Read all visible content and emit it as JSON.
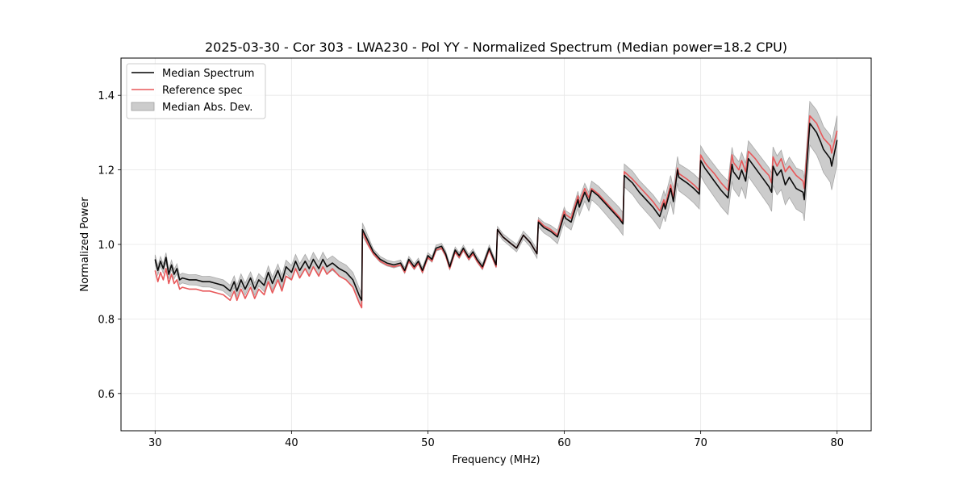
{
  "chart_data": {
    "type": "line",
    "title": "2025-03-30 - Cor 303 - LWA230 - Pol YY - Normalized Spectrum (Median power=18.2 CPU)",
    "xlabel": "Frequency (MHz)",
    "ylabel": "Normalized Power",
    "xlim": [
      27.5,
      82.5
    ],
    "ylim": [
      0.5,
      1.5
    ],
    "xticks": [
      30,
      40,
      50,
      60,
      70,
      80
    ],
    "xtick_labels": [
      "30",
      "40",
      "50",
      "60",
      "70",
      "80"
    ],
    "yticks": [
      0.6,
      0.8,
      1.0,
      1.2,
      1.4
    ],
    "ytick_labels": [
      "0.6",
      "0.8",
      "1.0",
      "1.2",
      "1.4"
    ],
    "grid": true,
    "legend_position": "top-left",
    "legend": [
      {
        "label": "Median Spectrum",
        "kind": "line",
        "color": "#000000"
      },
      {
        "label": "Reference spec",
        "kind": "line",
        "color": "#e8585a"
      },
      {
        "label": "Median Abs. Dev.",
        "kind": "band",
        "color": "#bfbfbf"
      }
    ],
    "x": [
      30.0,
      30.2,
      30.4,
      30.6,
      30.8,
      31.0,
      31.2,
      31.4,
      31.6,
      31.8,
      32.0,
      32.5,
      33.0,
      33.5,
      34.0,
      34.5,
      35.0,
      35.5,
      35.8,
      36.0,
      36.3,
      36.6,
      37.0,
      37.3,
      37.6,
      38.0,
      38.3,
      38.6,
      39.0,
      39.3,
      39.6,
      40.0,
      40.3,
      40.6,
      41.0,
      41.3,
      41.6,
      42.0,
      42.3,
      42.6,
      43.0,
      43.5,
      44.0,
      44.5,
      45.0,
      45.15,
      45.2,
      45.6,
      46.0,
      46.5,
      47.0,
      47.5,
      48.0,
      48.3,
      48.6,
      49.0,
      49.3,
      49.6,
      50.0,
      50.3,
      50.6,
      51.0,
      51.3,
      51.6,
      52.0,
      52.3,
      52.6,
      53.0,
      53.3,
      53.6,
      54.0,
      54.5,
      55.0,
      55.1,
      55.5,
      56.0,
      56.5,
      57.0,
      57.5,
      58.0,
      58.1,
      58.5,
      59.0,
      59.5,
      60.0,
      60.1,
      60.5,
      61.0,
      61.1,
      61.5,
      61.8,
      62.0,
      62.5,
      63.0,
      63.5,
      64.0,
      64.3,
      64.4,
      65.0,
      65.5,
      66.0,
      66.5,
      67.0,
      67.3,
      67.4,
      67.8,
      68.0,
      68.3,
      68.4,
      69.0,
      69.5,
      69.9,
      70.0,
      70.3,
      70.5,
      71.0,
      71.5,
      72.0,
      72.3,
      72.4,
      72.8,
      73.0,
      73.3,
      73.5,
      74.0,
      74.5,
      75.0,
      75.2,
      75.3,
      75.6,
      75.9,
      76.2,
      76.5,
      77.0,
      77.5,
      77.6,
      78.0,
      78.5,
      78.8,
      79.0,
      79.5,
      79.6,
      80.0
    ],
    "series": [
      {
        "name": "Median Spectrum",
        "color": "#000000",
        "values": [
          0.96,
          0.93,
          0.955,
          0.935,
          0.965,
          0.92,
          0.945,
          0.92,
          0.935,
          0.905,
          0.91,
          0.905,
          0.905,
          0.9,
          0.9,
          0.895,
          0.89,
          0.875,
          0.9,
          0.875,
          0.905,
          0.88,
          0.91,
          0.88,
          0.905,
          0.89,
          0.925,
          0.895,
          0.93,
          0.9,
          0.94,
          0.925,
          0.955,
          0.93,
          0.955,
          0.935,
          0.96,
          0.935,
          0.96,
          0.94,
          0.95,
          0.935,
          0.925,
          0.905,
          0.86,
          0.85,
          1.04,
          1.01,
          0.98,
          0.96,
          0.95,
          0.945,
          0.95,
          0.93,
          0.96,
          0.94,
          0.955,
          0.93,
          0.97,
          0.96,
          0.99,
          0.995,
          0.975,
          0.94,
          0.985,
          0.97,
          0.99,
          0.965,
          0.98,
          0.96,
          0.94,
          0.99,
          0.945,
          1.04,
          1.02,
          1.005,
          0.99,
          1.025,
          1.005,
          0.975,
          1.06,
          1.045,
          1.035,
          1.02,
          1.08,
          1.07,
          1.06,
          1.12,
          1.1,
          1.14,
          1.115,
          1.145,
          1.13,
          1.11,
          1.09,
          1.07,
          1.055,
          1.185,
          1.165,
          1.14,
          1.12,
          1.1,
          1.075,
          1.11,
          1.095,
          1.15,
          1.115,
          1.2,
          1.18,
          1.165,
          1.15,
          1.135,
          1.225,
          1.205,
          1.195,
          1.17,
          1.145,
          1.125,
          1.215,
          1.195,
          1.175,
          1.2,
          1.17,
          1.23,
          1.205,
          1.18,
          1.155,
          1.14,
          1.21,
          1.185,
          1.2,
          1.16,
          1.18,
          1.15,
          1.14,
          1.12,
          1.325,
          1.3,
          1.275,
          1.255,
          1.23,
          1.21,
          1.28,
          1.25
        ]
      },
      {
        "name": "Reference spec",
        "color": "#e8585a",
        "values": [
          0.93,
          0.9,
          0.925,
          0.905,
          0.935,
          0.895,
          0.92,
          0.895,
          0.905,
          0.88,
          0.885,
          0.88,
          0.88,
          0.875,
          0.875,
          0.87,
          0.865,
          0.85,
          0.875,
          0.85,
          0.88,
          0.855,
          0.885,
          0.855,
          0.88,
          0.865,
          0.9,
          0.87,
          0.905,
          0.875,
          0.915,
          0.905,
          0.935,
          0.91,
          0.935,
          0.915,
          0.94,
          0.915,
          0.94,
          0.92,
          0.935,
          0.915,
          0.905,
          0.885,
          0.84,
          0.83,
          1.035,
          1.0,
          0.975,
          0.955,
          0.945,
          0.94,
          0.945,
          0.925,
          0.955,
          0.935,
          0.95,
          0.925,
          0.965,
          0.955,
          0.985,
          0.99,
          0.97,
          0.935,
          0.98,
          0.965,
          0.985,
          0.96,
          0.975,
          0.955,
          0.935,
          0.985,
          0.94,
          1.04,
          1.02,
          1.005,
          0.99,
          1.025,
          1.005,
          0.975,
          1.065,
          1.05,
          1.04,
          1.025,
          1.09,
          1.08,
          1.07,
          1.13,
          1.11,
          1.15,
          1.125,
          1.15,
          1.135,
          1.115,
          1.095,
          1.075,
          1.06,
          1.195,
          1.175,
          1.155,
          1.135,
          1.115,
          1.09,
          1.12,
          1.105,
          1.16,
          1.125,
          1.205,
          1.19,
          1.175,
          1.16,
          1.145,
          1.24,
          1.22,
          1.21,
          1.19,
          1.165,
          1.145,
          1.24,
          1.22,
          1.2,
          1.225,
          1.195,
          1.25,
          1.23,
          1.205,
          1.185,
          1.165,
          1.235,
          1.21,
          1.23,
          1.195,
          1.21,
          1.185,
          1.17,
          1.15,
          1.345,
          1.325,
          1.3,
          1.285,
          1.265,
          1.245,
          1.305,
          1.28
        ]
      }
    ],
    "band": {
      "name": "Median Abs. Dev.",
      "color": "#bfbfbf",
      "half_width_by_x": [
        [
          30,
          0.012
        ],
        [
          40,
          0.018
        ],
        [
          45,
          0.02
        ],
        [
          46,
          0.008
        ],
        [
          55,
          0.008
        ],
        [
          58,
          0.012
        ],
        [
          60,
          0.02
        ],
        [
          64,
          0.03
        ],
        [
          68,
          0.035
        ],
        [
          72,
          0.045
        ],
        [
          77,
          0.055
        ],
        [
          80,
          0.065
        ]
      ]
    }
  }
}
